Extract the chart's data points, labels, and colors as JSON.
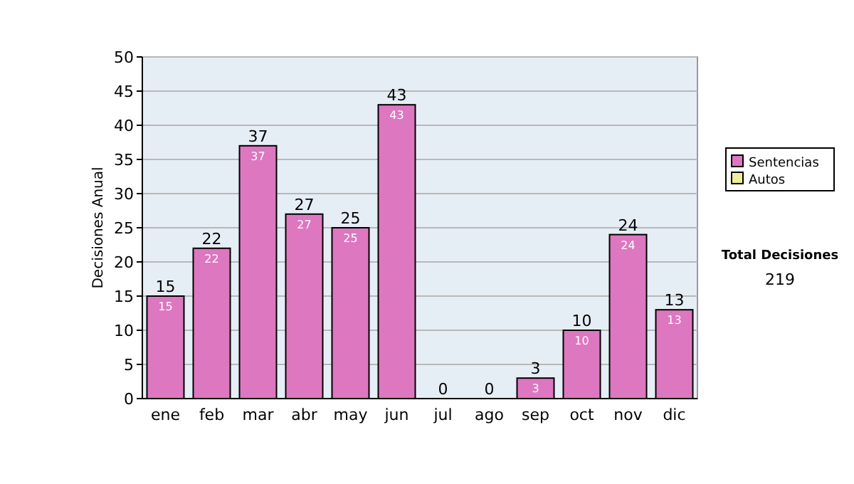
{
  "chart_data": {
    "type": "bar",
    "ylabel": "Decisiones Anual",
    "categories": [
      "ene",
      "feb",
      "mar",
      "abr",
      "may",
      "jun",
      "jul",
      "ago",
      "sep",
      "oct",
      "nov",
      "dic"
    ],
    "series": [
      {
        "name": "Sentencias",
        "color": "#dd77c0",
        "values": [
          15,
          22,
          37,
          27,
          25,
          43,
          0,
          0,
          3,
          10,
          24,
          13
        ],
        "value_labels": [
          "15",
          "22",
          "37",
          "27",
          "25",
          "43",
          null,
          null,
          "3",
          "10",
          "24",
          "13"
        ]
      },
      {
        "name": "Autos",
        "color": "#eeee99",
        "values": [
          null,
          null,
          null,
          null,
          null,
          null,
          null,
          null,
          null,
          null,
          null,
          null
        ]
      }
    ],
    "stacked": true,
    "totals": [
      "15",
      "22",
      "37",
      "27",
      "25",
      "43",
      "0",
      "0",
      "3",
      "10",
      "24",
      "13"
    ],
    "ylim": [
      0,
      50
    ],
    "yticks": [
      0,
      5,
      10,
      15,
      20,
      25,
      30,
      35,
      40,
      45,
      50
    ],
    "grid": "y",
    "legend": "right",
    "annotations": [
      "Total Decisiones",
      "219"
    ]
  }
}
